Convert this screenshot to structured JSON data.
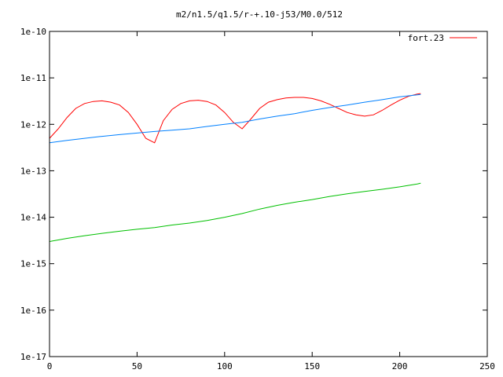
{
  "chart_data": {
    "type": "line",
    "title": "m2/n1.5/q1.5/r-+.10-j53/M0.0/512",
    "xlabel": "",
    "ylabel": "",
    "xlim": [
      0,
      250
    ],
    "ylim": [
      1e-17,
      1e-10
    ],
    "yscale": "log",
    "grid": false,
    "legend_position": "top-right",
    "x_ticks": [
      {
        "value": 0,
        "label": "0"
      },
      {
        "value": 50,
        "label": "50"
      },
      {
        "value": 100,
        "label": "100"
      },
      {
        "value": 150,
        "label": "150"
      },
      {
        "value": 200,
        "label": "200"
      },
      {
        "value": 250,
        "label": "250"
      }
    ],
    "y_ticks": [
      {
        "value": 1e-10,
        "label": "1e-10"
      },
      {
        "value": 1e-11,
        "label": "1e-11"
      },
      {
        "value": 1e-12,
        "label": "1e-12"
      },
      {
        "value": 1e-13,
        "label": "1e-13"
      },
      {
        "value": 1e-14,
        "label": "1e-14"
      },
      {
        "value": 1e-15,
        "label": "1e-15"
      },
      {
        "value": 1e-16,
        "label": "1e-16"
      },
      {
        "value": 1e-17,
        "label": "1e-17"
      }
    ],
    "series": [
      {
        "name": "fort.23",
        "color": "#ff0000",
        "x": [
          0,
          5,
          10,
          15,
          20,
          25,
          30,
          35,
          40,
          45,
          50,
          55,
          60,
          65,
          70,
          75,
          80,
          85,
          90,
          95,
          100,
          105,
          110,
          115,
          120,
          125,
          130,
          135,
          140,
          145,
          150,
          155,
          160,
          165,
          170,
          175,
          180,
          185,
          190,
          195,
          200,
          205,
          210,
          212
        ],
        "y": [
          5e-13,
          8e-13,
          1.4e-12,
          2.2e-12,
          2.8e-12,
          3.1e-12,
          3.2e-12,
          3e-12,
          2.6e-12,
          1.8e-12,
          1e-12,
          5e-13,
          4e-13,
          1.2e-12,
          2.1e-12,
          2.8e-12,
          3.2e-12,
          3.3e-12,
          3.1e-12,
          2.6e-12,
          1.8e-12,
          1.1e-12,
          8e-13,
          1.3e-12,
          2.2e-12,
          3e-12,
          3.4e-12,
          3.7e-12,
          3.8e-12,
          3.8e-12,
          3.6e-12,
          3.2e-12,
          2.7e-12,
          2.2e-12,
          1.8e-12,
          1.6e-12,
          1.5e-12,
          1.6e-12,
          2e-12,
          2.6e-12,
          3.3e-12,
          4e-12,
          4.5e-12,
          4.6e-12
        ]
      },
      {
        "name": "",
        "color": "#0080ff",
        "x": [
          0,
          10,
          20,
          30,
          40,
          50,
          60,
          70,
          80,
          90,
          100,
          110,
          120,
          130,
          140,
          150,
          160,
          170,
          180,
          190,
          200,
          210,
          212
        ],
        "y": [
          4e-13,
          4.5e-13,
          5e-13,
          5.5e-13,
          6e-13,
          6.5e-13,
          7e-13,
          7.5e-13,
          8e-13,
          9e-13,
          1e-12,
          1.1e-12,
          1.3e-12,
          1.5e-12,
          1.7e-12,
          2e-12,
          2.3e-12,
          2.6e-12,
          3e-12,
          3.4e-12,
          3.9e-12,
          4.3e-12,
          4.4e-12
        ]
      },
      {
        "name": "",
        "color": "#00c000",
        "x": [
          0,
          10,
          20,
          30,
          40,
          50,
          60,
          70,
          80,
          90,
          100,
          110,
          120,
          130,
          140,
          150,
          160,
          170,
          180,
          190,
          200,
          210,
          212
        ],
        "y": [
          3e-15,
          3.5e-15,
          4e-15,
          4.5e-15,
          5e-15,
          5.5e-15,
          6e-15,
          6.8e-15,
          7.5e-15,
          8.5e-15,
          1e-14,
          1.2e-14,
          1.5e-14,
          1.8e-14,
          2.1e-14,
          2.4e-14,
          2.8e-14,
          3.2e-14,
          3.6e-14,
          4e-14,
          4.5e-14,
          5.2e-14,
          5.4e-14
        ]
      }
    ]
  }
}
